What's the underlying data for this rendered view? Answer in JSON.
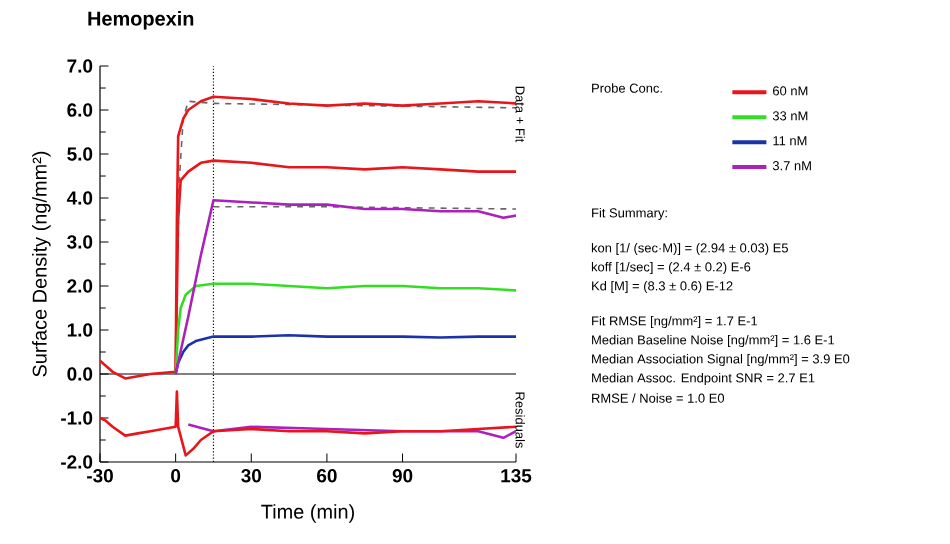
{
  "chart_data": {
    "type": "line",
    "title": "Hemopexin",
    "xlabel": "Time (min)",
    "ylabel": "Surface Density (ng/mm²)",
    "legend_title": "Probe Conc.",
    "legend": "right",
    "xlim": [
      -30,
      135
    ],
    "ylim": [
      -2,
      7
    ],
    "xticks": [
      -30,
      0,
      30,
      60,
      90,
      135
    ],
    "yticks": [
      {
        "value": -2,
        "label": "-2.0"
      },
      {
        "value": -1,
        "label": "-1.0"
      },
      {
        "value": 0,
        "label": "0.0"
      },
      {
        "value": 1,
        "label": "1.0"
      },
      {
        "value": 2,
        "label": "2.0"
      },
      {
        "value": 3,
        "label": "3.0"
      },
      {
        "value": 4,
        "label": "4.0"
      },
      {
        "value": 5,
        "label": "5.0"
      },
      {
        "value": 6,
        "label": "6.0"
      },
      {
        "value": 7,
        "label": "7.0"
      }
    ],
    "series": [
      {
        "name": "60 nM",
        "color": "#e8161b",
        "x": [
          -30,
          -25,
          -20,
          -10,
          0,
          0.5,
          1,
          3,
          5,
          10,
          15,
          30,
          45,
          60,
          75,
          90,
          105,
          120,
          135
        ],
        "values": [
          0.3,
          0.05,
          -0.1,
          0,
          0.05,
          3.5,
          5.4,
          5.8,
          6.0,
          6.2,
          6.3,
          6.25,
          6.15,
          6.1,
          6.15,
          6.1,
          6.15,
          6.2,
          6.15
        ]
      },
      {
        "name": "33 nM",
        "color": "#33dd22",
        "x": [
          0,
          1,
          2,
          4,
          8,
          15,
          30,
          45,
          60,
          75,
          90,
          105,
          120,
          135
        ],
        "values": [
          0,
          1.0,
          1.5,
          1.8,
          2.0,
          2.05,
          2.05,
          2.0,
          1.95,
          2.0,
          2.0,
          1.95,
          1.95,
          1.9
        ]
      },
      {
        "name": "11 nM",
        "color": "#1a33aa",
        "x": [
          0,
          1,
          3,
          5,
          8,
          15,
          30,
          45,
          60,
          75,
          90,
          105,
          120,
          135
        ],
        "values": [
          0,
          0.25,
          0.5,
          0.65,
          0.75,
          0.85,
          0.85,
          0.88,
          0.85,
          0.85,
          0.85,
          0.83,
          0.85,
          0.85
        ]
      },
      {
        "name": "3.7 nM",
        "color": "#aa22bb",
        "x": [
          0,
          5,
          10,
          15,
          30,
          45,
          60,
          75,
          90,
          105,
          120,
          130,
          135
        ],
        "values": [
          0,
          1.3,
          2.7,
          3.95,
          3.9,
          3.85,
          3.85,
          3.75,
          3.75,
          3.7,
          3.7,
          3.55,
          3.6
        ]
      },
      {
        "color": "#e8161b",
        "x": [
          0,
          1,
          2,
          5,
          10,
          15,
          30,
          45,
          60,
          75,
          90,
          105,
          120,
          135
        ],
        "values": [
          0.05,
          3.5,
          4.4,
          4.6,
          4.8,
          4.85,
          4.8,
          4.7,
          4.7,
          4.65,
          4.7,
          4.65,
          4.6,
          4.6
        ]
      },
      {
        "color": "#666666",
        "line_style": "dashed",
        "x": [
          0,
          1,
          3,
          5,
          15,
          135
        ],
        "values": [
          0,
          4.0,
          5.8,
          6.2,
          6.15,
          6.05
        ]
      },
      {
        "color": "#666666",
        "line_style": "dashed",
        "x": [
          15,
          60,
          135
        ],
        "values": [
          3.8,
          3.8,
          3.75
        ]
      },
      {
        "color": "#aa22bb",
        "x": [
          5,
          15,
          30,
          60,
          90,
          120,
          130,
          135
        ],
        "values": [
          -1.15,
          -1.3,
          -1.2,
          -1.25,
          -1.3,
          -1.3,
          -1.45,
          -1.3
        ]
      },
      {
        "color": "#e8161b",
        "x": [
          -30,
          -28,
          -25,
          -20,
          -15,
          -10,
          -5,
          0,
          0.5,
          1,
          4,
          7,
          10,
          15,
          30,
          45,
          60,
          75,
          90,
          105,
          120,
          135
        ],
        "values": [
          -1.0,
          -1.05,
          -1.2,
          -1.4,
          -1.35,
          -1.3,
          -1.25,
          -1.2,
          -0.4,
          -1.2,
          -1.85,
          -1.7,
          -1.5,
          -1.3,
          -1.25,
          -1.3,
          -1.3,
          -1.35,
          -1.3,
          -1.3,
          -1.25,
          -1.2
        ]
      }
    ],
    "ref_lines": [
      {
        "axis": "y",
        "value": 0,
        "color": "#000000",
        "line_style": "solid"
      },
      {
        "axis": "x",
        "value": 15,
        "color": "#000000",
        "line_style": "dotted"
      }
    ],
    "annotations": [
      "Data + Fit",
      "Residuals",
      "Fit Summary:",
      "kon  [1/ (sec·M)]  =   (2.94 ± 0.03) E5",
      "koff  [1/sec]  =   (2.4 ± 0.2) E-6",
      "Kd  [M]  =   (8.3 ± 0.6) E-12",
      "Fit RMSE [ng/mm²]  =   1.7 E-1",
      "Median Baseline Noise [ng/mm²]  =   1.6 E-1",
      "Median Association Signal [ng/mm²]  =   3.9 E0",
      "Median Assoc. Endpoint SNR  =   2.7 E1",
      "RMSE / Noise  =   1.0 E0"
    ]
  }
}
